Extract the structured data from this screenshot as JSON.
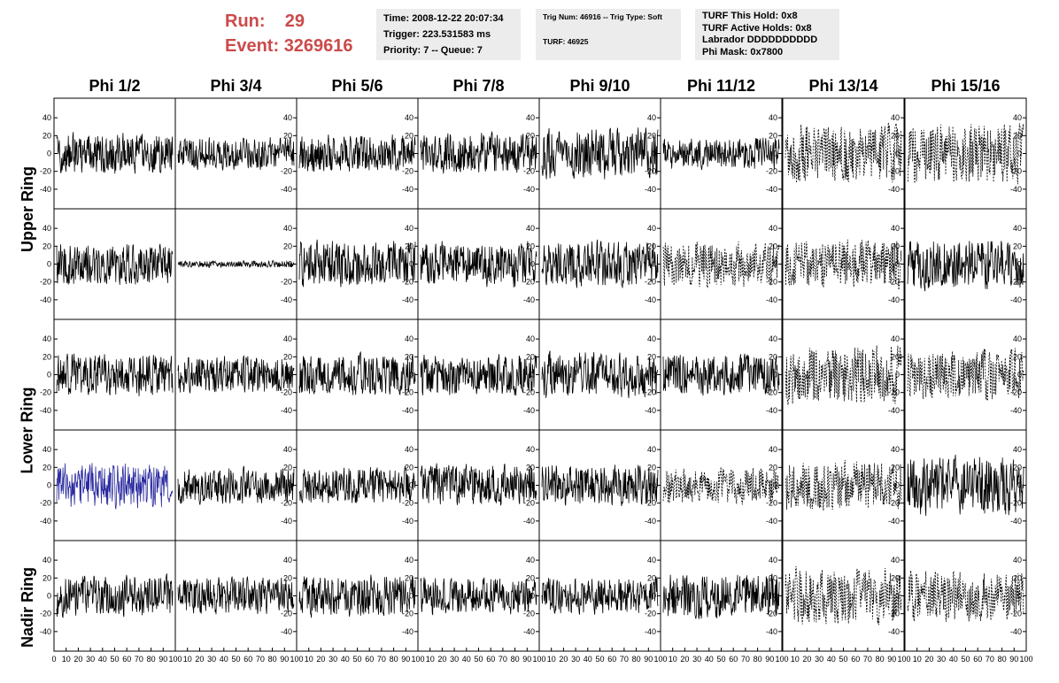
{
  "run_info": {
    "run_label": "Run:",
    "run_value": "29",
    "event_label": "Event:",
    "event_value": "3269616"
  },
  "trigger_box": {
    "time": "Time: 2008-12-22 20:07:34",
    "trigger": "Trigger: 223.531583 ms",
    "priority_queue": "Priority: 7 -- Queue: 7"
  },
  "trig_box": {
    "trig_line": "Trig Num: 46916 -- Trig Type: Soft",
    "turf": "TURF: 46925"
  },
  "turf_box": {
    "this_hold": "TURF This Hold: 0x8",
    "active_holds": "TURF Active Holds: 0x8",
    "labrador": "Labrador DDDDDDDDDD",
    "phi_mask": "Phi Mask: 0x7800"
  },
  "chart_data": {
    "type": "line",
    "columns": [
      "Phi 1/2",
      "Phi 3/4",
      "Phi 5/6",
      "Phi 7/8",
      "Phi 9/10",
      "Phi 11/12",
      "Phi 13/14",
      "Phi 15/16"
    ],
    "ring_labels": [
      "Upper Ring",
      "Lower Ring",
      "Nadir Ring"
    ],
    "y_ticks": [
      40,
      20,
      0,
      -20,
      -40
    ],
    "ylim": [
      -55,
      55
    ],
    "xlim": [
      0,
      100
    ],
    "x_tick_labels_first": [
      "0",
      "10",
      "20",
      "30",
      "40",
      "50",
      "60",
      "70",
      "80",
      "90",
      "100"
    ],
    "x_tick_labels": [
      "10",
      "20",
      "30",
      "40",
      "50",
      "60",
      "70",
      "80",
      "90",
      "100"
    ],
    "samples_per_trace": 260,
    "highlight_color": "#2a2aa0",
    "trace_color": "#000000",
    "rows": [
      {
        "amplitude": [
          18,
          14,
          16,
          18,
          22,
          14,
          26,
          26
        ],
        "style": [
          "solid",
          "solid",
          "solid",
          "solid",
          "solid",
          "solid",
          "dashed",
          "dashed"
        ],
        "highlight": [
          false,
          false,
          false,
          false,
          false,
          false,
          false,
          false
        ]
      },
      {
        "amplitude": [
          18,
          3,
          20,
          20,
          20,
          20,
          22,
          22
        ],
        "style": [
          "solid",
          "solid",
          "solid",
          "solid",
          "solid",
          "dashed",
          "dashed",
          "solid"
        ],
        "highlight": [
          false,
          false,
          false,
          false,
          false,
          false,
          false,
          false
        ]
      },
      {
        "amplitude": [
          18,
          16,
          18,
          18,
          20,
          18,
          26,
          22
        ],
        "style": [
          "solid",
          "solid",
          "solid",
          "solid",
          "solid",
          "solid",
          "dashed",
          "dashed"
        ],
        "highlight": [
          false,
          false,
          false,
          false,
          false,
          false,
          false,
          false
        ]
      },
      {
        "amplitude": [
          20,
          16,
          16,
          18,
          18,
          16,
          22,
          26
        ],
        "style": [
          "solid",
          "solid",
          "solid",
          "solid",
          "solid",
          "dashed",
          "dashed",
          "solid"
        ],
        "highlight": [
          true,
          false,
          false,
          false,
          false,
          false,
          false,
          false
        ]
      },
      {
        "amplitude": [
          18,
          16,
          18,
          16,
          16,
          20,
          24,
          22
        ],
        "style": [
          "solid",
          "solid",
          "solid",
          "solid",
          "solid",
          "solid",
          "dashed",
          "dashed"
        ],
        "highlight": [
          false,
          false,
          false,
          false,
          false,
          false,
          false,
          false
        ]
      }
    ]
  }
}
